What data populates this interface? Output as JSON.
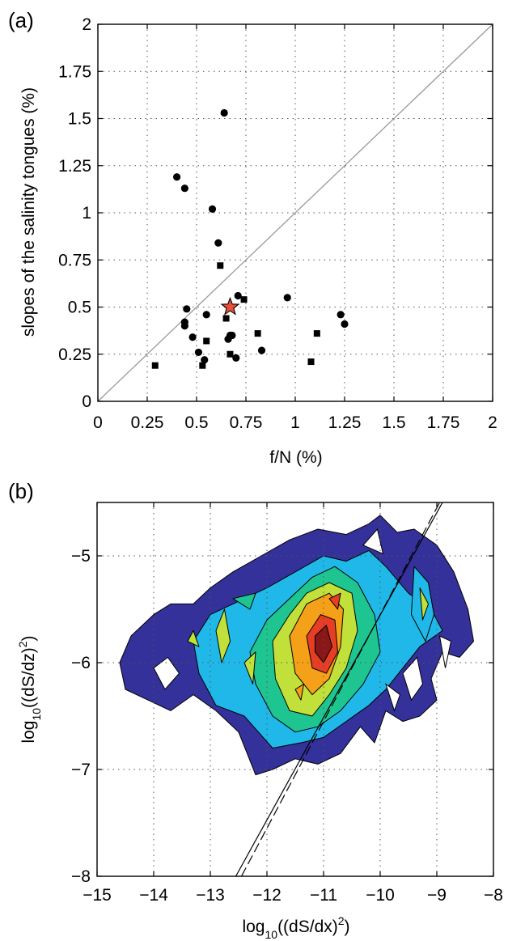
{
  "chart_data": [
    {
      "type": "scatter",
      "panel_label": "(a)",
      "xlabel": "f/N (%)",
      "ylabel": "slopes of the salinity tongues (%)",
      "xlim": [
        0,
        2
      ],
      "ylim": [
        0,
        2
      ],
      "x_ticks": [
        "0",
        "0.25",
        "0.5",
        "0.75",
        "1",
        "1.25",
        "1.5",
        "1.75",
        "2"
      ],
      "y_ticks": [
        "0",
        "0.25",
        "0.5",
        "0.75",
        "1",
        "1.25",
        "1.5",
        "1.75",
        "2"
      ],
      "grid": true,
      "reference_line": {
        "description": "1:1 line",
        "color": "#999999",
        "points": [
          [
            0,
            0
          ],
          [
            2,
            2
          ]
        ]
      },
      "series": [
        {
          "marker": "circle",
          "color": "#000000",
          "points": [
            [
              0.64,
              1.53
            ],
            [
              0.4,
              1.19
            ],
            [
              0.44,
              1.13
            ],
            [
              0.58,
              1.02
            ],
            [
              0.61,
              0.84
            ],
            [
              0.71,
              0.56
            ],
            [
              0.96,
              0.55
            ],
            [
              0.45,
              0.49
            ],
            [
              0.44,
              0.42
            ],
            [
              0.44,
              0.4
            ],
            [
              0.55,
              0.46
            ],
            [
              1.23,
              0.46
            ],
            [
              1.25,
              0.41
            ],
            [
              0.67,
              0.35
            ],
            [
              0.68,
              0.35
            ],
            [
              0.48,
              0.34
            ],
            [
              0.66,
              0.33
            ],
            [
              0.83,
              0.27
            ],
            [
              0.51,
              0.26
            ],
            [
              0.7,
              0.23
            ],
            [
              0.54,
              0.22
            ]
          ]
        },
        {
          "marker": "square",
          "color": "#000000",
          "points": [
            [
              0.62,
              0.72
            ],
            [
              0.74,
              0.54
            ],
            [
              0.65,
              0.44
            ],
            [
              0.81,
              0.36
            ],
            [
              1.11,
              0.36
            ],
            [
              0.55,
              0.32
            ],
            [
              0.67,
              0.25
            ],
            [
              1.08,
              0.21
            ],
            [
              0.29,
              0.19
            ],
            [
              0.53,
              0.19
            ]
          ]
        },
        {
          "marker": "star",
          "color": "#e8503a",
          "points": [
            [
              0.67,
              0.5
            ]
          ]
        }
      ]
    },
    {
      "type": "contour",
      "panel_label": "(b)",
      "xlabel": "log",
      "xlabel_sub": "10",
      "xlabel_rest": "((dS/dx)",
      "xlabel_sup": "2",
      "xlabel_end": ")",
      "ylabel": "log",
      "ylabel_sub": "10",
      "ylabel_rest": "((dS/dz)",
      "ylabel_sup": "2",
      "ylabel_end": ")",
      "xlim": [
        -15,
        -8
      ],
      "ylim": [
        -8,
        -4.5
      ],
      "x_ticks": [
        "−15",
        "−14",
        "−13",
        "−12",
        "−11",
        "−10",
        "−9",
        "−8"
      ],
      "y_ticks": [
        "−8",
        "−7",
        "−6",
        "−5"
      ],
      "grid": true,
      "level_colors": [
        "#34319a",
        "#20b8e8",
        "#1ec590",
        "#c2e03a",
        "#f5a019",
        "#e53e24",
        "#8a1717"
      ],
      "regions": [
        {
          "level": 0,
          "points": [
            [
              -14.6,
              -6.0
            ],
            [
              -14.4,
              -5.75
            ],
            [
              -14.0,
              -5.55
            ],
            [
              -13.7,
              -5.45
            ],
            [
              -13.3,
              -5.45
            ],
            [
              -13.0,
              -5.3
            ],
            [
              -12.6,
              -5.15
            ],
            [
              -12.1,
              -5.0
            ],
            [
              -11.6,
              -4.85
            ],
            [
              -11.1,
              -4.75
            ],
            [
              -10.6,
              -4.8
            ],
            [
              -10.2,
              -4.7
            ],
            [
              -10.0,
              -4.62
            ],
            [
              -9.7,
              -4.78
            ],
            [
              -9.4,
              -4.75
            ],
            [
              -9.0,
              -4.9
            ],
            [
              -8.7,
              -5.15
            ],
            [
              -8.45,
              -5.5
            ],
            [
              -8.35,
              -5.8
            ],
            [
              -8.6,
              -5.95
            ],
            [
              -8.9,
              -5.9
            ],
            [
              -9.1,
              -6.15
            ],
            [
              -9.0,
              -6.35
            ],
            [
              -9.3,
              -6.5
            ],
            [
              -9.6,
              -6.55
            ],
            [
              -9.9,
              -6.45
            ],
            [
              -10.1,
              -6.75
            ],
            [
              -10.35,
              -6.6
            ],
            [
              -10.7,
              -6.85
            ],
            [
              -11.1,
              -6.95
            ],
            [
              -11.5,
              -6.9
            ],
            [
              -11.9,
              -7.0
            ],
            [
              -12.2,
              -7.05
            ],
            [
              -12.5,
              -6.65
            ],
            [
              -12.9,
              -6.45
            ],
            [
              -13.3,
              -6.3
            ],
            [
              -13.7,
              -6.45
            ],
            [
              -14.1,
              -6.35
            ],
            [
              -14.5,
              -6.25
            ]
          ]
        },
        {
          "level": 1,
          "points": [
            [
              -13.3,
              -5.8
            ],
            [
              -13.0,
              -5.55
            ],
            [
              -12.6,
              -5.45
            ],
            [
              -12.0,
              -5.3
            ],
            [
              -11.5,
              -5.15
            ],
            [
              -11.0,
              -5.0
            ],
            [
              -10.6,
              -5.05
            ],
            [
              -10.2,
              -4.95
            ],
            [
              -9.9,
              -5.1
            ],
            [
              -9.5,
              -5.35
            ],
            [
              -9.1,
              -5.5
            ],
            [
              -8.9,
              -5.7
            ],
            [
              -9.3,
              -5.85
            ],
            [
              -9.6,
              -6.05
            ],
            [
              -9.9,
              -6.25
            ],
            [
              -10.2,
              -6.4
            ],
            [
              -10.6,
              -6.55
            ],
            [
              -11.0,
              -6.7
            ],
            [
              -11.4,
              -6.75
            ],
            [
              -11.9,
              -6.8
            ],
            [
              -12.4,
              -6.5
            ],
            [
              -12.9,
              -6.4
            ],
            [
              -13.2,
              -6.1
            ]
          ]
        },
        {
          "level": 1,
          "points": [
            [
              -9.4,
              -5.1
            ],
            [
              -9.15,
              -5.25
            ],
            [
              -9.05,
              -5.55
            ],
            [
              -9.2,
              -5.8
            ],
            [
              -9.45,
              -5.55
            ]
          ]
        },
        {
          "level": 2,
          "points": [
            [
              -12.3,
              -5.9
            ],
            [
              -12.0,
              -5.6
            ],
            [
              -11.6,
              -5.4
            ],
            [
              -11.2,
              -5.2
            ],
            [
              -10.8,
              -5.1
            ],
            [
              -10.4,
              -5.25
            ],
            [
              -10.1,
              -5.55
            ],
            [
              -10.0,
              -5.9
            ],
            [
              -10.3,
              -6.2
            ],
            [
              -10.7,
              -6.45
            ],
            [
              -11.1,
              -6.6
            ],
            [
              -11.5,
              -6.65
            ],
            [
              -11.9,
              -6.5
            ],
            [
              -12.2,
              -6.2
            ]
          ]
        },
        {
          "level": 2,
          "points": [
            [
              -12.6,
              -5.4
            ],
            [
              -12.2,
              -5.35
            ],
            [
              -12.3,
              -5.5
            ]
          ]
        },
        {
          "level": 3,
          "points": [
            [
              -11.9,
              -5.8
            ],
            [
              -11.6,
              -5.55
            ],
            [
              -11.3,
              -5.35
            ],
            [
              -10.9,
              -5.25
            ],
            [
              -10.5,
              -5.35
            ],
            [
              -10.4,
              -5.7
            ],
            [
              -10.6,
              -6.05
            ],
            [
              -10.9,
              -6.3
            ],
            [
              -11.2,
              -6.5
            ],
            [
              -11.6,
              -6.45
            ],
            [
              -11.85,
              -6.15
            ]
          ]
        },
        {
          "level": 3,
          "points": [
            [
              -12.9,
              -5.7
            ],
            [
              -12.75,
              -5.5
            ],
            [
              -12.65,
              -5.8
            ],
            [
              -12.8,
              -6.0
            ]
          ]
        },
        {
          "level": 3,
          "points": [
            [
              -12.4,
              -6.0
            ],
            [
              -12.2,
              -5.9
            ],
            [
              -12.25,
              -6.2
            ]
          ]
        },
        {
          "level": 3,
          "points": [
            [
              -9.3,
              -5.3
            ],
            [
              -9.15,
              -5.45
            ],
            [
              -9.25,
              -5.6
            ]
          ]
        },
        {
          "level": 3,
          "points": [
            [
              -13.4,
              -5.8
            ],
            [
              -13.3,
              -5.7
            ],
            [
              -13.2,
              -5.85
            ]
          ]
        },
        {
          "level": 4,
          "points": [
            [
              -11.6,
              -5.75
            ],
            [
              -11.3,
              -5.45
            ],
            [
              -10.9,
              -5.35
            ],
            [
              -10.65,
              -5.5
            ],
            [
              -10.7,
              -5.85
            ],
            [
              -10.9,
              -6.15
            ],
            [
              -11.2,
              -6.3
            ],
            [
              -11.5,
              -6.1
            ]
          ]
        },
        {
          "level": 4,
          "points": [
            [
              -11.5,
              -6.25
            ],
            [
              -11.35,
              -6.2
            ],
            [
              -11.4,
              -6.35
            ]
          ]
        },
        {
          "level": 5,
          "points": [
            [
              -11.3,
              -5.75
            ],
            [
              -11.05,
              -5.55
            ],
            [
              -10.8,
              -5.6
            ],
            [
              -10.75,
              -5.9
            ],
            [
              -10.95,
              -6.1
            ],
            [
              -11.2,
              -6.05
            ]
          ]
        },
        {
          "level": 5,
          "points": [
            [
              -10.9,
              -5.4
            ],
            [
              -10.7,
              -5.35
            ],
            [
              -10.75,
              -5.5
            ]
          ]
        },
        {
          "level": 6,
          "points": [
            [
              -11.15,
              -5.75
            ],
            [
              -10.95,
              -5.65
            ],
            [
              -10.85,
              -5.85
            ],
            [
              -11.0,
              -6.0
            ],
            [
              -11.15,
              -5.9
            ]
          ]
        }
      ],
      "holes": [
        [
          [
            -14.0,
            -6.05
          ],
          [
            -13.75,
            -5.95
          ],
          [
            -13.55,
            -6.1
          ],
          [
            -13.8,
            -6.25
          ]
        ],
        [
          [
            -10.3,
            -4.9
          ],
          [
            -10.05,
            -4.75
          ],
          [
            -9.95,
            -4.98
          ]
        ],
        [
          [
            -9.6,
            -6.1
          ],
          [
            -9.35,
            -5.95
          ],
          [
            -9.25,
            -6.2
          ],
          [
            -9.45,
            -6.35
          ]
        ],
        [
          [
            -9.9,
            -6.2
          ],
          [
            -9.65,
            -6.3
          ],
          [
            -9.75,
            -6.45
          ]
        ],
        [
          [
            -8.95,
            -5.75
          ],
          [
            -8.75,
            -5.8
          ],
          [
            -8.85,
            -6.05
          ]
        ]
      ],
      "lines": [
        {
          "style": "solid",
          "points": [
            [
              -12.55,
              -8.0
            ],
            [
              -8.9,
              -4.5
            ]
          ]
        },
        {
          "style": "dashed",
          "points": [
            [
              -12.45,
              -8.0
            ],
            [
              -8.95,
              -4.5
            ]
          ]
        }
      ]
    }
  ]
}
